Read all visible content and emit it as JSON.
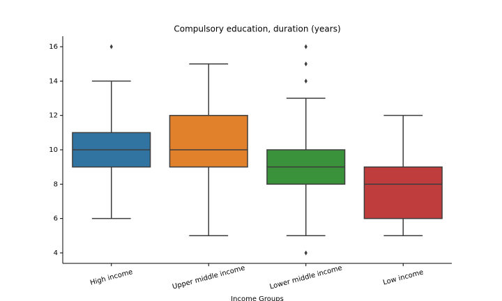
{
  "chart_data": {
    "type": "box",
    "title": "Compulsory education, duration (years)",
    "xlabel": "Income Groups",
    "categories": [
      "High income",
      "Upper middle income",
      "Lower middle income",
      "Low income"
    ],
    "boxes": [
      {
        "whislo": 6,
        "q1": 9,
        "med": 10,
        "q3": 11,
        "whishi": 14,
        "fliers": [
          16
        ],
        "color": "#3274a1"
      },
      {
        "whislo": 5,
        "q1": 9,
        "med": 10,
        "q3": 12,
        "whishi": 15,
        "fliers": [],
        "color": "#e1812c"
      },
      {
        "whislo": 5,
        "q1": 8,
        "med": 9,
        "q3": 10,
        "whishi": 13,
        "fliers": [
          4,
          14,
          15,
          16
        ],
        "color": "#3a923a"
      },
      {
        "whislo": 5,
        "q1": 6,
        "med": 8,
        "q3": 9,
        "whishi": 12,
        "fliers": [],
        "color": "#c03d3e"
      }
    ],
    "ylim": [
      3.39,
      16.61
    ],
    "yticks": [
      4,
      6,
      8,
      10,
      12,
      14,
      16
    ],
    "grid": false
  }
}
